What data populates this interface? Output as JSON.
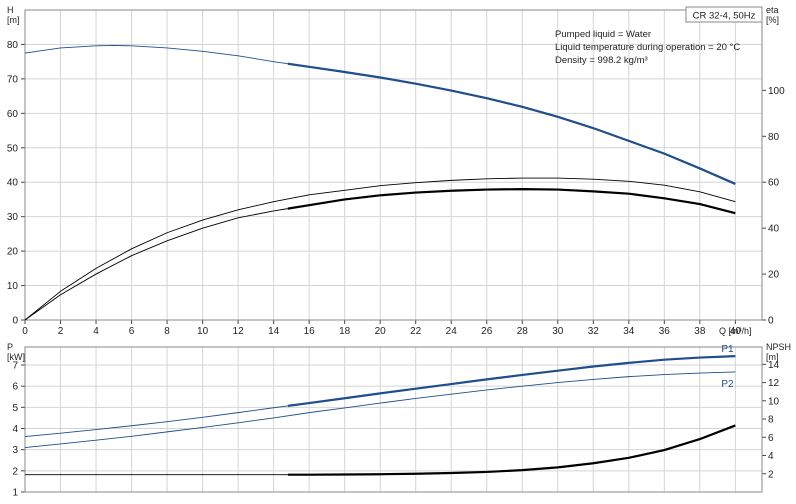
{
  "badge": "CR 32-4, 50Hz",
  "info": [
    "Pumped liquid = Water",
    "Liquid temperature during operation = 20 °C",
    "Density = 998.2 kg/m³"
  ],
  "colors": {
    "blue": "#1f4e8c",
    "black": "#000000",
    "grid": "#d4d4d4",
    "frame": "#8a8a8a"
  },
  "chart_data": [
    {
      "type": "line",
      "title": "",
      "ylabel": [
        "H",
        "[m]"
      ],
      "y2label": [
        "eta",
        "[%]"
      ],
      "xlabel": "Q [m³/h]",
      "xlim": [
        0,
        41.5
      ],
      "ylim": [
        0,
        90
      ],
      "y2lim": [
        0,
        135
      ],
      "x_ticks": [
        0,
        2,
        4,
        6,
        8,
        10,
        12,
        14,
        16,
        18,
        20,
        22,
        24,
        26,
        28,
        30,
        32,
        34,
        36,
        38,
        40
      ],
      "y_ticks": [
        0,
        10,
        20,
        30,
        40,
        50,
        60,
        70,
        80
      ],
      "y2_ticks": [
        0,
        20,
        40,
        60,
        80,
        100
      ],
      "grid": true,
      "series": [
        {
          "axis": "left",
          "color": "blue",
          "width_range": [
            0.9,
            2.2
          ],
          "bold_from": 14.8,
          "x": [
            0,
            2,
            4,
            5,
            6,
            8,
            10,
            12,
            14,
            16,
            18,
            20,
            22,
            24,
            26,
            28,
            30,
            32,
            34,
            36,
            38,
            40
          ],
          "y": [
            77.5,
            79.0,
            79.6,
            79.7,
            79.6,
            79.0,
            78.0,
            76.7,
            75.0,
            73.5,
            72.0,
            70.4,
            68.6,
            66.6,
            64.4,
            61.9,
            59.0,
            55.7,
            52.0,
            48.3,
            44.0,
            39.5
          ]
        },
        {
          "axis": "right",
          "color": "black",
          "width_range": [
            0.9,
            0.9
          ],
          "x": [
            0,
            2,
            4,
            6,
            8,
            10,
            12,
            14,
            16,
            18,
            20,
            22,
            24,
            26,
            28,
            30,
            32,
            34,
            36,
            38,
            40
          ],
          "y": [
            0,
            12.5,
            22.5,
            31,
            38,
            43.5,
            48,
            51.5,
            54.5,
            56.5,
            58.5,
            59.8,
            60.8,
            61.5,
            61.8,
            61.8,
            61.3,
            60.4,
            58.7,
            55.8,
            51.5
          ]
        },
        {
          "axis": "right",
          "color": "black",
          "width_range": [
            0.9,
            2.2
          ],
          "bold_from": 14.8,
          "x": [
            0,
            2,
            4,
            6,
            8,
            10,
            12,
            14,
            16,
            18,
            20,
            22,
            24,
            26,
            28,
            30,
            32,
            34,
            36,
            38,
            40
          ],
          "y": [
            0,
            11,
            20,
            28,
            34.5,
            40,
            44.5,
            47.5,
            50,
            52.5,
            54.3,
            55.5,
            56.3,
            56.8,
            57.0,
            56.8,
            56.0,
            55.0,
            53.0,
            50.5,
            46.5
          ]
        }
      ]
    },
    {
      "type": "line",
      "title": "",
      "ylabel": [
        "P",
        "[kW]"
      ],
      "y2label": [
        "NPSH",
        "[m]"
      ],
      "xlim": [
        0,
        41.5
      ],
      "ylim": [
        1,
        7.85
      ],
      "y2lim": [
        0,
        15.9
      ],
      "y_ticks": [
        1,
        2,
        3,
        4,
        5,
        6,
        7
      ],
      "y2_ticks": [
        2,
        4,
        6,
        8,
        10,
        12,
        14
      ],
      "grid": true,
      "series": [
        {
          "name": "P1",
          "axis": "left",
          "color": "blue",
          "width_range": [
            0.9,
            2.2
          ],
          "bold_from": 14.8,
          "x": [
            0,
            2,
            4,
            6,
            8,
            10,
            12,
            14,
            16,
            18,
            20,
            22,
            24,
            26,
            28,
            30,
            32,
            34,
            36,
            38,
            40
          ],
          "y": [
            3.62,
            3.78,
            3.95,
            4.13,
            4.32,
            4.53,
            4.75,
            4.98,
            5.2,
            5.43,
            5.66,
            5.88,
            6.1,
            6.32,
            6.53,
            6.73,
            6.93,
            7.1,
            7.25,
            7.35,
            7.42
          ]
        },
        {
          "name": "P2",
          "axis": "left",
          "color": "blue",
          "width_range": [
            0.9,
            0.9
          ],
          "x": [
            0,
            2,
            4,
            6,
            8,
            10,
            12,
            14,
            16,
            18,
            20,
            22,
            24,
            26,
            28,
            30,
            32,
            34,
            36,
            38,
            40
          ],
          "y": [
            3.1,
            3.27,
            3.45,
            3.63,
            3.84,
            4.05,
            4.27,
            4.5,
            4.75,
            4.97,
            5.2,
            5.42,
            5.62,
            5.82,
            6.0,
            6.17,
            6.32,
            6.45,
            6.55,
            6.62,
            6.67
          ]
        },
        {
          "axis": "right",
          "color": "black",
          "width_range": [
            0.9,
            2.2
          ],
          "bold_from": 14.8,
          "x": [
            0,
            2,
            4,
            6,
            8,
            10,
            12,
            14,
            16,
            18,
            20,
            22,
            24,
            26,
            28,
            30,
            32,
            34,
            36,
            38,
            40
          ],
          "y": [
            1.9,
            1.9,
            1.9,
            1.9,
            1.9,
            1.9,
            1.9,
            1.9,
            1.9,
            1.92,
            1.95,
            2.0,
            2.08,
            2.2,
            2.4,
            2.7,
            3.15,
            3.75,
            4.6,
            5.8,
            7.3
          ]
        }
      ]
    }
  ]
}
